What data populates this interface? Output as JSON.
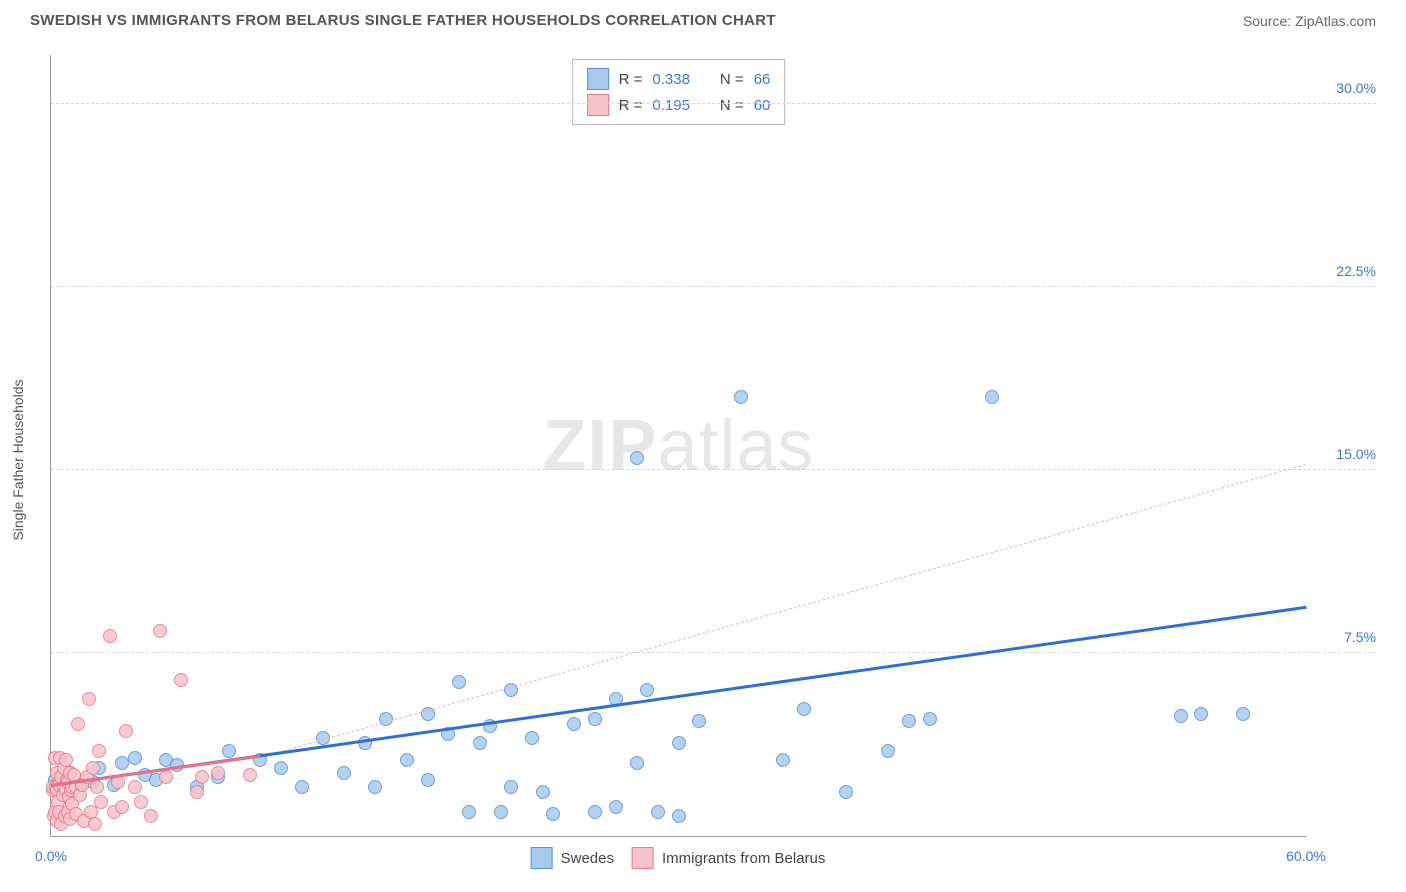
{
  "header": {
    "title": "SWEDISH VS IMMIGRANTS FROM BELARUS SINGLE FATHER HOUSEHOLDS CORRELATION CHART",
    "source": "Source: ZipAtlas.com"
  },
  "y_axis_label": "Single Father Households",
  "watermark": {
    "bold": "ZIP",
    "light": "atlas"
  },
  "chart": {
    "type": "scatter",
    "xlim": [
      0,
      60
    ],
    "ylim": [
      0,
      32
    ],
    "background_color": "#ffffff",
    "grid_color": "#d8d8d8",
    "yticks": [
      {
        "v": 7.5,
        "label": "7.5%",
        "color": "#3a77d6"
      },
      {
        "v": 15.0,
        "label": "15.0%",
        "color": "#3a77d6"
      },
      {
        "v": 22.5,
        "label": "22.5%",
        "color": "#3a77d6"
      },
      {
        "v": 30.0,
        "label": "30.0%",
        "color": "#3a77d6"
      }
    ],
    "xticks": [
      {
        "v": 0,
        "label": "0.0%",
        "color": "#3a77d6"
      },
      {
        "v": 60,
        "label": "60.0%",
        "color": "#3a77d6"
      }
    ],
    "series": [
      {
        "name": "Swedes",
        "marker_fill": "#a9c9ee",
        "marker_stroke": "#5a8fd6",
        "marker_radius": 7,
        "trend": {
          "style": "solid",
          "color": "#2f6fd0",
          "width": 3,
          "x0": 0,
          "y0": 2.0,
          "x1": 60,
          "y1": 9.3
        },
        "trend_ext": {
          "style": "dashed",
          "color": "#f4aeb9",
          "width": 1,
          "x0": 10,
          "y0": 3.2,
          "x1": 60,
          "y1": 15.2
        },
        "points": [
          [
            0.2,
            2.3
          ],
          [
            0.4,
            2.1
          ],
          [
            0.5,
            2.4
          ],
          [
            0.7,
            1.9
          ],
          [
            0.8,
            2.2
          ],
          [
            0.9,
            2.6
          ],
          [
            1.0,
            1.8
          ],
          [
            1.2,
            2.0
          ],
          [
            1.4,
            2.1
          ],
          [
            2,
            2.2
          ],
          [
            2.3,
            2.8
          ],
          [
            3,
            2.1
          ],
          [
            3.4,
            3.0
          ],
          [
            4,
            3.2
          ],
          [
            4.5,
            2.5
          ],
          [
            5,
            2.3
          ],
          [
            5.5,
            3.1
          ],
          [
            6,
            2.9
          ],
          [
            7,
            2.0
          ],
          [
            8,
            2.4
          ],
          [
            8.5,
            3.5
          ],
          [
            10,
            3.1
          ],
          [
            11,
            2.8
          ],
          [
            12,
            2.0
          ],
          [
            13,
            4.0
          ],
          [
            14,
            2.6
          ],
          [
            15,
            3.8
          ],
          [
            15.5,
            2.0
          ],
          [
            16,
            4.8
          ],
          [
            17,
            3.1
          ],
          [
            18,
            5.0
          ],
          [
            18,
            2.3
          ],
          [
            19,
            4.2
          ],
          [
            19.5,
            6.3
          ],
          [
            20,
            1.0
          ],
          [
            20.5,
            3.8
          ],
          [
            21,
            4.5
          ],
          [
            21.5,
            1.0
          ],
          [
            22,
            6.0
          ],
          [
            22,
            2.0
          ],
          [
            23,
            4.0
          ],
          [
            23.5,
            1.8
          ],
          [
            24,
            0.9
          ],
          [
            25,
            4.6
          ],
          [
            26,
            4.8
          ],
          [
            26,
            1.0
          ],
          [
            27,
            5.6
          ],
          [
            27,
            1.2
          ],
          [
            28,
            3.0
          ],
          [
            28,
            15.5
          ],
          [
            28.5,
            6.0
          ],
          [
            29,
            1.0
          ],
          [
            30,
            3.8
          ],
          [
            30,
            0.8
          ],
          [
            31,
            4.7
          ],
          [
            33,
            18.0
          ],
          [
            35,
            3.1
          ],
          [
            36,
            5.2
          ],
          [
            38,
            1.8
          ],
          [
            40,
            3.5
          ],
          [
            41,
            4.7
          ],
          [
            42,
            4.8
          ],
          [
            45,
            18.0
          ],
          [
            54,
            4.9
          ],
          [
            55,
            5.0
          ],
          [
            57,
            5.0
          ]
        ]
      },
      {
        "name": "Immigrants from Belarus",
        "marker_fill": "#f6c3cb",
        "marker_stroke": "#e77a8d",
        "marker_radius": 7,
        "trend": {
          "style": "solid",
          "color": "#ec6f84",
          "width": 3,
          "x0": 0,
          "y0": 2.0,
          "x1": 10,
          "y1": 3.2
        },
        "points": [
          [
            0.1,
            1.9
          ],
          [
            0.1,
            2.0
          ],
          [
            0.15,
            0.8
          ],
          [
            0.2,
            3.2
          ],
          [
            0.2,
            1.0
          ],
          [
            0.25,
            2.0
          ],
          [
            0.3,
            0.6
          ],
          [
            0.3,
            1.9
          ],
          [
            0.3,
            2.6
          ],
          [
            0.35,
            1.4
          ],
          [
            0.4,
            2.1
          ],
          [
            0.4,
            1.0
          ],
          [
            0.45,
            3.2
          ],
          [
            0.5,
            0.5
          ],
          [
            0.5,
            2.4
          ],
          [
            0.55,
            1.7
          ],
          [
            0.6,
            2.0
          ],
          [
            0.6,
            2.8
          ],
          [
            0.65,
            0.8
          ],
          [
            0.7,
            1.9
          ],
          [
            0.7,
            3.1
          ],
          [
            0.75,
            2.3
          ],
          [
            0.8,
            1.0
          ],
          [
            0.8,
            2.2
          ],
          [
            0.85,
            1.6
          ],
          [
            0.9,
            2.6
          ],
          [
            0.9,
            0.7
          ],
          [
            0.95,
            1.9
          ],
          [
            1.0,
            2.0
          ],
          [
            1.0,
            1.3
          ],
          [
            1.1,
            2.5
          ],
          [
            1.2,
            0.9
          ],
          [
            1.2,
            2.0
          ],
          [
            1.3,
            4.6
          ],
          [
            1.4,
            1.7
          ],
          [
            1.5,
            2.1
          ],
          [
            1.6,
            0.6
          ],
          [
            1.7,
            2.4
          ],
          [
            1.8,
            5.6
          ],
          [
            1.9,
            1.0
          ],
          [
            2.0,
            2.8
          ],
          [
            2.1,
            0.5
          ],
          [
            2.2,
            2.0
          ],
          [
            2.3,
            3.5
          ],
          [
            2.4,
            1.4
          ],
          [
            2.8,
            8.2
          ],
          [
            3.0,
            1.0
          ],
          [
            3.2,
            2.2
          ],
          [
            3.4,
            1.2
          ],
          [
            3.6,
            4.3
          ],
          [
            4.0,
            2.0
          ],
          [
            4.3,
            1.4
          ],
          [
            4.8,
            0.8
          ],
          [
            5.2,
            8.4
          ],
          [
            5.5,
            2.4
          ],
          [
            6.2,
            6.4
          ],
          [
            7.0,
            1.8
          ],
          [
            7.2,
            2.4
          ],
          [
            8.0,
            2.6
          ],
          [
            9.5,
            2.5
          ]
        ]
      }
    ]
  },
  "stats_legend": {
    "rows": [
      {
        "fill": "#a9c9ee",
        "stroke": "#5a8fd6",
        "r_label": "R =",
        "r": "0.338",
        "n_label": "N =",
        "n": "66"
      },
      {
        "fill": "#f6c3cb",
        "stroke": "#e77a8d",
        "r_label": "R =",
        "r": "0.195",
        "n_label": "N =",
        "n": "60"
      }
    ]
  },
  "bottom_legend": {
    "items": [
      {
        "fill": "#a9c9ee",
        "stroke": "#5a8fd6",
        "label": "Swedes"
      },
      {
        "fill": "#f6c3cb",
        "stroke": "#e77a8d",
        "label": "Immigrants from Belarus"
      }
    ]
  }
}
